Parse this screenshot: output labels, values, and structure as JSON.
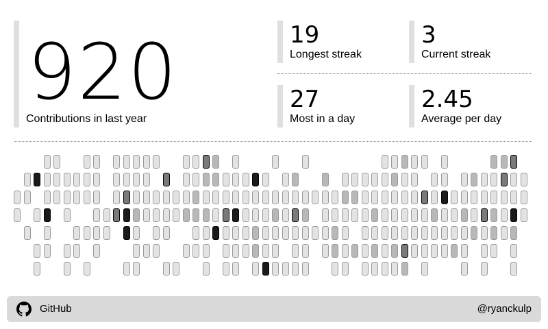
{
  "summary": {
    "total": "920",
    "total_label": "Contributions in last year"
  },
  "stats": [
    {
      "value": "19",
      "label": "Longest streak"
    },
    {
      "value": "3",
      "label": "Current streak"
    },
    {
      "value": "27",
      "label": "Most in a day"
    },
    {
      "value": "2.45",
      "label": "Average per day"
    }
  ],
  "footer": {
    "icon": "github-icon",
    "brand": "GitHub",
    "handle": "@ryanckulp"
  },
  "colors": {
    "level0": "#ffffff",
    "level1": "#e3e3e3",
    "level2": "#b8b8b8",
    "level3": "#7a7a7a",
    "level4": "#1b1b1b"
  },
  "contribution_grid": {
    "rows": 7,
    "cols": 52,
    "levels": [
      [
        0,
        0,
        0,
        1,
        1,
        0,
        0,
        1,
        1,
        0,
        1,
        1,
        1,
        1,
        1,
        0,
        0,
        1,
        1,
        3,
        2,
        0,
        1,
        0,
        0,
        0,
        1,
        0,
        0,
        1,
        0,
        0,
        0,
        0,
        0,
        0,
        0,
        1,
        1,
        2,
        1,
        1,
        0,
        1,
        0,
        0,
        0,
        0,
        2,
        2,
        3,
        0
      ],
      [
        0,
        1,
        4,
        1,
        1,
        1,
        1,
        1,
        1,
        0,
        1,
        1,
        1,
        1,
        0,
        3,
        0,
        1,
        1,
        2,
        2,
        1,
        1,
        1,
        4,
        1,
        0,
        1,
        2,
        0,
        0,
        2,
        0,
        1,
        1,
        1,
        1,
        1,
        2,
        1,
        1,
        0,
        1,
        1,
        0,
        1,
        2,
        1,
        1,
        3,
        1,
        1
      ],
      [
        1,
        1,
        0,
        1,
        1,
        1,
        1,
        1,
        1,
        0,
        1,
        3,
        1,
        1,
        1,
        1,
        1,
        1,
        2,
        1,
        1,
        1,
        1,
        1,
        1,
        1,
        1,
        1,
        1,
        1,
        1,
        1,
        1,
        2,
        2,
        1,
        1,
        1,
        1,
        1,
        1,
        3,
        1,
        4,
        1,
        1,
        1,
        1,
        1,
        1,
        1,
        1
      ],
      [
        1,
        0,
        1,
        4,
        0,
        1,
        0,
        0,
        1,
        1,
        3,
        4,
        2,
        1,
        1,
        1,
        1,
        2,
        2,
        2,
        1,
        3,
        4,
        1,
        1,
        1,
        2,
        1,
        3,
        2,
        0,
        1,
        1,
        1,
        1,
        1,
        2,
        1,
        1,
        1,
        1,
        1,
        2,
        1,
        1,
        2,
        1,
        3,
        2,
        1,
        4,
        1
      ],
      [
        0,
        1,
        0,
        1,
        0,
        0,
        1,
        1,
        1,
        1,
        0,
        4,
        1,
        0,
        1,
        1,
        0,
        0,
        1,
        1,
        4,
        1,
        1,
        1,
        2,
        1,
        1,
        1,
        1,
        1,
        1,
        1,
        2,
        1,
        0,
        1,
        1,
        1,
        1,
        1,
        1,
        1,
        1,
        1,
        1,
        1,
        2,
        1,
        2,
        1,
        2,
        0
      ],
      [
        0,
        0,
        1,
        1,
        0,
        1,
        1,
        0,
        1,
        0,
        0,
        0,
        1,
        1,
        1,
        0,
        0,
        1,
        1,
        1,
        0,
        1,
        1,
        1,
        2,
        1,
        1,
        0,
        1,
        1,
        0,
        1,
        2,
        1,
        2,
        1,
        2,
        1,
        2,
        3,
        1,
        1,
        1,
        1,
        2,
        1,
        0,
        1,
        1,
        0,
        1,
        0
      ],
      [
        0,
        0,
        1,
        0,
        0,
        1,
        0,
        1,
        0,
        0,
        0,
        1,
        1,
        0,
        0,
        1,
        1,
        0,
        0,
        1,
        0,
        1,
        1,
        0,
        1,
        4,
        1,
        1,
        1,
        1,
        0,
        0,
        1,
        1,
        0,
        1,
        1,
        1,
        1,
        2,
        0,
        1,
        0,
        0,
        0,
        1,
        0,
        1,
        0,
        0,
        1,
        0
      ]
    ]
  }
}
